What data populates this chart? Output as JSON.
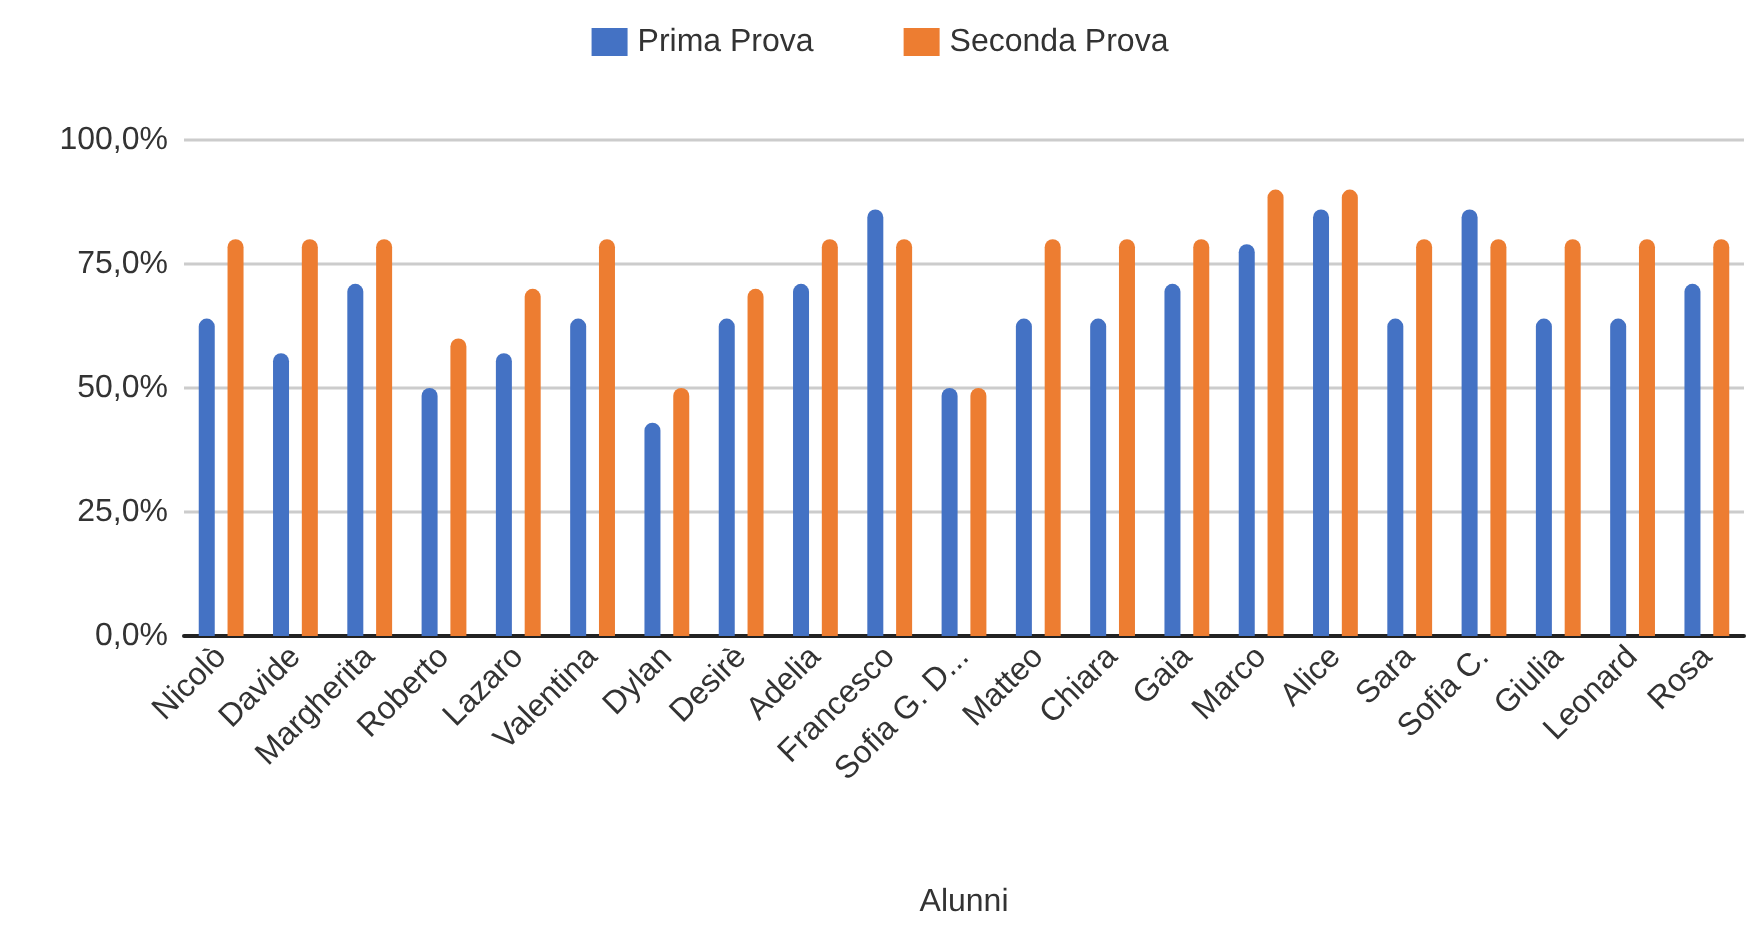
{
  "chart_data": {
    "type": "bar",
    "xlabel": "Alunni",
    "categories": [
      "Nicolò",
      "Davide",
      "Margherita",
      "Roberto",
      "Lazaro",
      "Valentina",
      "Dylan",
      "Desirè",
      "Adelia",
      "Francesco",
      "Sofia G. D...",
      "Matteo",
      "Chiara",
      "Gaia",
      "Marco",
      "Alice",
      "Sara",
      "Sofia C.",
      "Giulia",
      "Leonard",
      "Rosa"
    ],
    "series": [
      {
        "name": "Prima Prova",
        "color": "#4472c4",
        "values": [
          64,
          57,
          71,
          50,
          57,
          64,
          43,
          64,
          71,
          86,
          50,
          64,
          64,
          71,
          79,
          86,
          64,
          86,
          64,
          64,
          71
        ]
      },
      {
        "name": "Seconda Prova",
        "color": "#ed7d31",
        "values": [
          80,
          80,
          80,
          60,
          70,
          80,
          50,
          70,
          80,
          80,
          50,
          80,
          80,
          80,
          90,
          90,
          80,
          80,
          80,
          80,
          80
        ]
      }
    ],
    "ylim": [
      0,
      100
    ],
    "yticks": [
      {
        "value": 0,
        "label": "0,0%"
      },
      {
        "value": 25,
        "label": "25,0%"
      },
      {
        "value": 50,
        "label": "50,0%"
      },
      {
        "value": 75,
        "label": "75,0%"
      },
      {
        "value": 100,
        "label": "100,0%"
      }
    ],
    "grid": "y",
    "legend": "top"
  }
}
